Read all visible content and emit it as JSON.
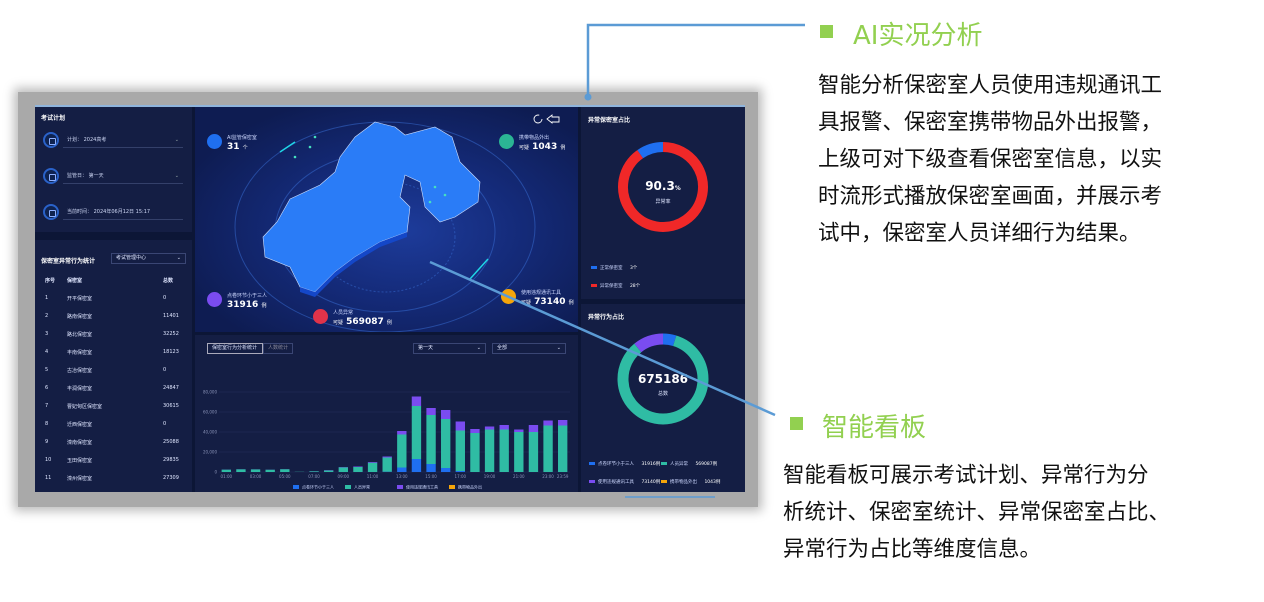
{
  "dashboard": {
    "exam_plan": {
      "title": "考试计划",
      "plan_label": "计划：",
      "plan_value": "2024高考",
      "day_label": "监管日：",
      "day_value": "第一天",
      "time_label": "当前时间：",
      "time_value": "2024年06月12日 15:17"
    },
    "room_stats": {
      "title": "保密室异常行为统计",
      "filter_value": "考试管理中心",
      "columns": [
        "序号",
        "保密室",
        "总数"
      ],
      "rows": [
        [
          "1",
          "开平保密室",
          "0"
        ],
        [
          "2",
          "路南保密室",
          "11401"
        ],
        [
          "3",
          "路北保密室",
          "32252"
        ],
        [
          "4",
          "丰南保密室",
          "18123"
        ],
        [
          "5",
          "古冶保密室",
          "0"
        ],
        [
          "6",
          "丰润保密室",
          "24847"
        ],
        [
          "7",
          "曹妃甸区保密室",
          "30615"
        ],
        [
          "8",
          "迁西保密室",
          "0"
        ],
        [
          "9",
          "滦南保密室",
          "25088"
        ],
        [
          "10",
          "玉田保密室",
          "29835"
        ],
        [
          "11",
          "滦州保密室",
          "27309"
        ]
      ]
    },
    "map": {
      "icons": [
        "refresh-icon",
        "back-icon"
      ],
      "stats": [
        {
          "label": "AI监管保密室",
          "prefix": "",
          "value": "31",
          "unit": "个",
          "color": "#1f6ff0",
          "icon": "building-icon"
        },
        {
          "label": "携带物品外出",
          "prefix": "可疑",
          "value": "1043",
          "unit": "例",
          "color": "#2bb594",
          "icon": "bag-icon"
        },
        {
          "label": "点卷环节小于三人",
          "prefix": "",
          "value": "31916",
          "unit": "例",
          "color": "#7a4cf0",
          "icon": "people-icon"
        },
        {
          "label": "使用违规通讯工具",
          "prefix": "可疑",
          "value": "73140",
          "unit": "例",
          "color": "#f5a50a",
          "icon": "phone-icon"
        },
        {
          "label": "人员异常",
          "prefix": "可疑",
          "value": "569087",
          "unit": "例",
          "color": "#e0334a",
          "icon": "person-icon"
        }
      ]
    },
    "behavior_chart": {
      "tabs": [
        "保密室行为分析统计",
        "人数统计"
      ],
      "active_tab": 0,
      "day_select": "第一天",
      "type_select": "全部"
    },
    "abnormal_room_ratio": {
      "title": "异常保密室占比",
      "center_value": "90.3",
      "center_unit": "%",
      "center_label": "异常率",
      "legend": [
        {
          "label": "正常保密室",
          "value": "3个",
          "color": "#1f6ff0"
        },
        {
          "label": "异常保密室",
          "value": "28个",
          "color": "#f02828"
        }
      ]
    },
    "abnormal_behavior_ratio": {
      "title": "异常行为占比",
      "center_value": "675186",
      "center_label": "总数",
      "legend": [
        {
          "label": "点卷环节小于三人",
          "value": "31916例",
          "color": "#1f6ff0"
        },
        {
          "label": "人员异常",
          "value": "569087例",
          "color": "#2fbca4"
        },
        {
          "label": "使用违规通讯工具",
          "value": "73140例",
          "color": "#7a4cf0"
        },
        {
          "label": "携带物品外出",
          "value": "1043例",
          "color": "#f5a50a"
        }
      ]
    }
  },
  "chart_data": [
    {
      "type": "bar",
      "stacked": true,
      "categories": [
        "01:00",
        "02:00",
        "03:00",
        "04:00",
        "05:00",
        "06:00",
        "07:00",
        "08:00",
        "09:00",
        "10:00",
        "11:00",
        "12:00",
        "13:00",
        "14:00",
        "15:00",
        "16:00",
        "17:00",
        "18:00",
        "19:00",
        "20:00",
        "21:00",
        "22:00",
        "23:00",
        "23:59"
      ],
      "tick_labels": [
        "01:00",
        "03:00",
        "05:00",
        "07:00",
        "09:00",
        "11:00",
        "13:00",
        "15:00",
        "17:00",
        "19:00",
        "21:00",
        "23:00",
        "23:59"
      ],
      "yticks": [
        "0",
        "20,000",
        "40,000",
        "60,000",
        "80,000"
      ],
      "ylim": [
        0,
        80000
      ],
      "grid": true,
      "legend_position": "bottom",
      "series": [
        {
          "name": "点卷环节小于三人",
          "color": "#1f6ff0",
          "values": [
            0,
            0,
            0,
            0,
            0,
            0,
            0,
            0,
            0,
            0,
            0,
            300,
            4500,
            13000,
            8000,
            4000,
            1000,
            0,
            0,
            0,
            0,
            0,
            0,
            0
          ]
        },
        {
          "name": "人员异常",
          "color": "#2fbca4",
          "values": [
            2400,
            2700,
            2600,
            2300,
            2800,
            200,
            700,
            1500,
            4700,
            5000,
            9300,
            14200,
            33000,
            53000,
            49000,
            49000,
            40500,
            39000,
            42500,
            42500,
            40000,
            40000,
            46500,
            46500
          ]
        },
        {
          "name": "使用违规通讯工具",
          "color": "#7a4cf0",
          "values": [
            100,
            100,
            100,
            100,
            100,
            0,
            100,
            300,
            300,
            500,
            700,
            1000,
            3500,
            9500,
            7000,
            9000,
            9000,
            4000,
            3000,
            4500,
            2500,
            7000,
            5000,
            5500
          ]
        },
        {
          "name": "携带物品外出",
          "color": "#f5a50a",
          "values": [
            0,
            0,
            0,
            0,
            0,
            0,
            0,
            0,
            0,
            0,
            0,
            0,
            0,
            0,
            0,
            0,
            0,
            0,
            0,
            0,
            0,
            0,
            0,
            0
          ]
        }
      ]
    },
    {
      "type": "pie",
      "donut": true,
      "labels": [
        "正常保密室",
        "异常保密室"
      ],
      "values": [
        3,
        28
      ],
      "colors": [
        "#1f6ff0",
        "#f02828"
      ]
    },
    {
      "type": "pie",
      "donut": true,
      "labels": [
        "点卷环节小于三人",
        "人员异常",
        "使用违规通讯工具",
        "携带物品外出"
      ],
      "values": [
        31916,
        569087,
        73140,
        1043
      ],
      "colors": [
        "#1f6ff0",
        "#2fbca4",
        "#7a4cf0",
        "#f5a50a"
      ]
    }
  ],
  "annotations": {
    "ai": {
      "title": "AI实况分析",
      "lines": [
        "智能分析保密室人员使用违规通讯工",
        "具报警、保密室携带物品外出报警，",
        "上级可对下级查看保密室信息，以实",
        "时流形式播放保密室画面，并展示考",
        "试中，保密室人员详细行为结果。"
      ]
    },
    "board": {
      "title": "智能看板",
      "lines": [
        "智能看板可展示考试计划、异常行为分",
        "析统计、保密室统计、异常保密室占比、",
        "异常行为占比等维度信息。"
      ]
    },
    "accent_color": "#92d050",
    "line_color": "#5b9bd5"
  }
}
